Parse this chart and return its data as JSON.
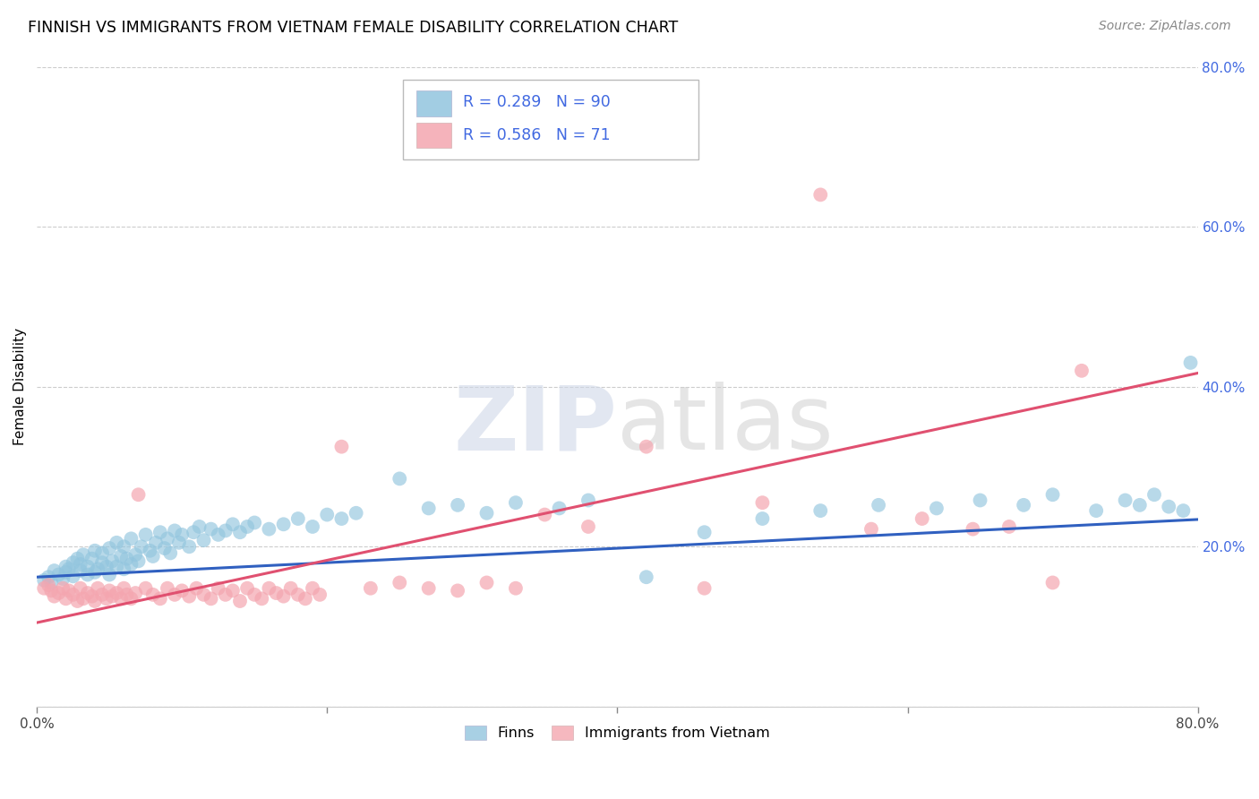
{
  "title": "FINNISH VS IMMIGRANTS FROM VIETNAM FEMALE DISABILITY CORRELATION CHART",
  "source": "Source: ZipAtlas.com",
  "ylabel": "Female Disability",
  "watermark_zip": "ZIP",
  "watermark_atlas": "atlas",
  "finns_R": 0.289,
  "finns_N": 90,
  "vietnam_R": 0.586,
  "vietnam_N": 71,
  "finns_color": "#92c5de",
  "vietnam_color": "#f4a6b0",
  "finns_line_color": "#3060c0",
  "vietnam_line_color": "#e05070",
  "background_color": "#ffffff",
  "grid_color": "#cccccc",
  "axis_label_color": "#4169E1",
  "xlim": [
    0.0,
    0.8
  ],
  "ylim": [
    0.0,
    0.8
  ],
  "yticks": [
    0.0,
    0.2,
    0.4,
    0.6,
    0.8
  ],
  "ytick_labels": [
    "",
    "20.0%",
    "40.0%",
    "60.0%",
    "80.0%"
  ],
  "xticks": [
    0.0,
    0.2,
    0.4,
    0.6,
    0.8
  ],
  "xtick_labels": [
    "0.0%",
    "",
    "",
    "",
    "80.0%"
  ],
  "finns_x": [
    0.005,
    0.008,
    0.01,
    0.012,
    0.015,
    0.018,
    0.02,
    0.02,
    0.022,
    0.025,
    0.025,
    0.028,
    0.03,
    0.03,
    0.032,
    0.035,
    0.035,
    0.038,
    0.04,
    0.04,
    0.042,
    0.045,
    0.045,
    0.048,
    0.05,
    0.05,
    0.052,
    0.055,
    0.055,
    0.058,
    0.06,
    0.06,
    0.062,
    0.065,
    0.065,
    0.068,
    0.07,
    0.072,
    0.075,
    0.078,
    0.08,
    0.082,
    0.085,
    0.088,
    0.09,
    0.092,
    0.095,
    0.098,
    0.1,
    0.105,
    0.108,
    0.112,
    0.115,
    0.12,
    0.125,
    0.13,
    0.135,
    0.14,
    0.145,
    0.15,
    0.16,
    0.17,
    0.18,
    0.19,
    0.2,
    0.21,
    0.22,
    0.25,
    0.27,
    0.29,
    0.31,
    0.33,
    0.36,
    0.38,
    0.42,
    0.46,
    0.5,
    0.54,
    0.58,
    0.62,
    0.65,
    0.68,
    0.7,
    0.73,
    0.75,
    0.76,
    0.77,
    0.78,
    0.79,
    0.795
  ],
  "finns_y": [
    0.158,
    0.162,
    0.155,
    0.17,
    0.165,
    0.16,
    0.175,
    0.168,
    0.172,
    0.18,
    0.163,
    0.185,
    0.17,
    0.178,
    0.19,
    0.165,
    0.175,
    0.185,
    0.168,
    0.195,
    0.172,
    0.18,
    0.192,
    0.175,
    0.165,
    0.198,
    0.182,
    0.175,
    0.205,
    0.188,
    0.172,
    0.2,
    0.185,
    0.178,
    0.21,
    0.19,
    0.182,
    0.2,
    0.215,
    0.195,
    0.188,
    0.205,
    0.218,
    0.198,
    0.21,
    0.192,
    0.22,
    0.205,
    0.215,
    0.2,
    0.218,
    0.225,
    0.208,
    0.222,
    0.215,
    0.22,
    0.228,
    0.218,
    0.225,
    0.23,
    0.222,
    0.228,
    0.235,
    0.225,
    0.24,
    0.235,
    0.242,
    0.285,
    0.248,
    0.252,
    0.242,
    0.255,
    0.248,
    0.258,
    0.162,
    0.218,
    0.235,
    0.245,
    0.252,
    0.248,
    0.258,
    0.252,
    0.265,
    0.245,
    0.258,
    0.252,
    0.265,
    0.25,
    0.245,
    0.43
  ],
  "vietnam_x": [
    0.005,
    0.008,
    0.01,
    0.012,
    0.015,
    0.018,
    0.02,
    0.022,
    0.025,
    0.028,
    0.03,
    0.032,
    0.035,
    0.038,
    0.04,
    0.042,
    0.045,
    0.048,
    0.05,
    0.052,
    0.055,
    0.058,
    0.06,
    0.062,
    0.065,
    0.068,
    0.07,
    0.075,
    0.08,
    0.085,
    0.09,
    0.095,
    0.1,
    0.105,
    0.11,
    0.115,
    0.12,
    0.125,
    0.13,
    0.135,
    0.14,
    0.145,
    0.15,
    0.155,
    0.16,
    0.165,
    0.17,
    0.175,
    0.18,
    0.185,
    0.19,
    0.195,
    0.21,
    0.23,
    0.25,
    0.27,
    0.29,
    0.31,
    0.33,
    0.35,
    0.38,
    0.42,
    0.46,
    0.5,
    0.54,
    0.575,
    0.61,
    0.645,
    0.67,
    0.7,
    0.72
  ],
  "vietnam_y": [
    0.148,
    0.152,
    0.145,
    0.138,
    0.142,
    0.148,
    0.135,
    0.145,
    0.14,
    0.132,
    0.148,
    0.135,
    0.142,
    0.138,
    0.132,
    0.148,
    0.14,
    0.135,
    0.145,
    0.138,
    0.142,
    0.135,
    0.148,
    0.14,
    0.135,
    0.142,
    0.265,
    0.148,
    0.14,
    0.135,
    0.148,
    0.14,
    0.145,
    0.138,
    0.148,
    0.14,
    0.135,
    0.148,
    0.14,
    0.145,
    0.132,
    0.148,
    0.14,
    0.135,
    0.148,
    0.142,
    0.138,
    0.148,
    0.14,
    0.135,
    0.148,
    0.14,
    0.325,
    0.148,
    0.155,
    0.148,
    0.145,
    0.155,
    0.148,
    0.24,
    0.225,
    0.325,
    0.148,
    0.255,
    0.64,
    0.222,
    0.235,
    0.222,
    0.225,
    0.155,
    0.42
  ],
  "finns_line_intercept": 0.162,
  "finns_line_slope": 0.09,
  "vietnam_line_intercept": 0.105,
  "vietnam_line_slope": 0.39
}
